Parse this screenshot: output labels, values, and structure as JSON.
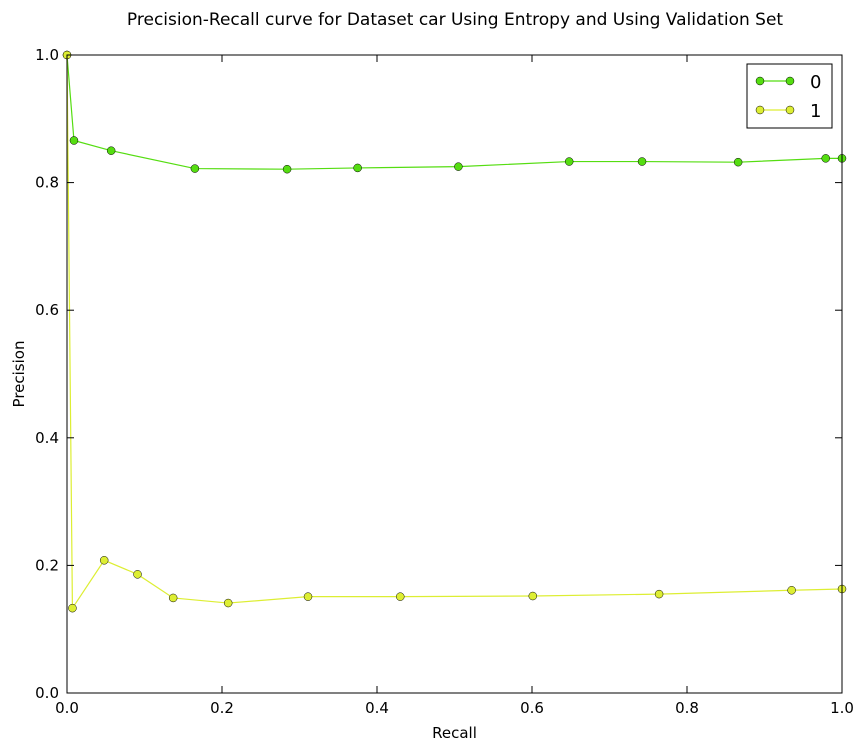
{
  "chart_data": {
    "type": "line",
    "title": "Precision-Recall curve for Dataset car Using Entropy and Using Validation Set",
    "xlabel": "Recall",
    "ylabel": "Precision",
    "xlim": [
      0.0,
      1.0
    ],
    "ylim": [
      0.0,
      1.0
    ],
    "xticks": [
      "0.0",
      "0.2",
      "0.4",
      "0.6",
      "0.8",
      "1.0"
    ],
    "yticks": [
      "0.0",
      "0.2",
      "0.4",
      "0.6",
      "0.8",
      "1.0"
    ],
    "grid": false,
    "legend_position": "top-right",
    "series": [
      {
        "name": "0",
        "color": "#55dd11",
        "x": [
          0.0,
          0.009,
          0.057,
          0.165,
          0.284,
          0.375,
          0.505,
          0.648,
          0.742,
          0.866,
          0.979,
          1.0
        ],
        "y": [
          1.0,
          0.866,
          0.85,
          0.822,
          0.821,
          0.823,
          0.825,
          0.833,
          0.833,
          0.832,
          0.838,
          0.838
        ]
      },
      {
        "name": "1",
        "color": "#ddee33",
        "x": [
          0.0,
          0.007,
          0.048,
          0.091,
          0.137,
          0.208,
          0.311,
          0.43,
          0.601,
          0.764,
          0.935,
          1.0
        ],
        "y": [
          1.0,
          0.133,
          0.208,
          0.186,
          0.149,
          0.141,
          0.151,
          0.151,
          0.152,
          0.155,
          0.161,
          0.163
        ]
      }
    ]
  }
}
